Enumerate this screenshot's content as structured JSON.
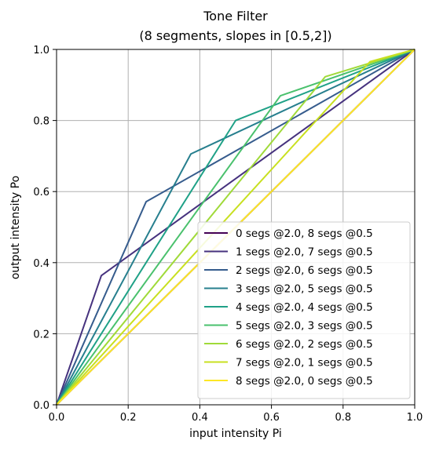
{
  "chart_data": {
    "type": "line",
    "title": "Tone Filter",
    "subtitle": "(8 segments, slopes in [0.5,2])",
    "xlabel": "input intensity Pi",
    "ylabel": "output intensity Po",
    "xlim": [
      0,
      1
    ],
    "ylim": [
      0,
      1
    ],
    "xticks": [
      "0.0",
      "0.2",
      "0.4",
      "0.6",
      "0.8",
      "1.0"
    ],
    "yticks": [
      "0.0",
      "0.2",
      "0.4",
      "0.6",
      "0.8",
      "1.0"
    ],
    "grid": true,
    "legend_position": "lower-right",
    "series": [
      {
        "name": "0 segs @2.0, 8 segs @0.5",
        "color": "#440154",
        "x": [
          0,
          1
        ],
        "y": [
          0,
          1
        ]
      },
      {
        "name": "1 segs @2.0, 7 segs @0.5",
        "color": "#46327e",
        "x": [
          0,
          0.125,
          1
        ],
        "y": [
          0,
          0.3636,
          1
        ]
      },
      {
        "name": "2 segs @2.0, 6 segs @0.5",
        "color": "#365c8d",
        "x": [
          0,
          0.25,
          1
        ],
        "y": [
          0,
          0.5714,
          1
        ]
      },
      {
        "name": "3 segs @2.0, 5 segs @0.5",
        "color": "#277f8e",
        "x": [
          0,
          0.375,
          1
        ],
        "y": [
          0,
          0.7059,
          1
        ]
      },
      {
        "name": "4 segs @2.0, 4 segs @0.5",
        "color": "#1fa187",
        "x": [
          0,
          0.5,
          1
        ],
        "y": [
          0,
          0.8,
          1
        ]
      },
      {
        "name": "5 segs @2.0, 3 segs @0.5",
        "color": "#4ac16d",
        "x": [
          0,
          0.625,
          1
        ],
        "y": [
          0,
          0.8696,
          1
        ]
      },
      {
        "name": "6 segs @2.0, 2 segs @0.5",
        "color": "#a0da39",
        "x": [
          0,
          0.75,
          1
        ],
        "y": [
          0,
          0.9231,
          1
        ]
      },
      {
        "name": "7 segs @2.0, 1 segs @0.5",
        "color": "#c8e020",
        "x": [
          0,
          0.875,
          1
        ],
        "y": [
          0,
          0.9655,
          1
        ]
      },
      {
        "name": "8 segs @2.0, 0 segs @0.5",
        "color": "#fde725",
        "x": [
          0,
          1
        ],
        "y": [
          0,
          1
        ]
      }
    ]
  }
}
